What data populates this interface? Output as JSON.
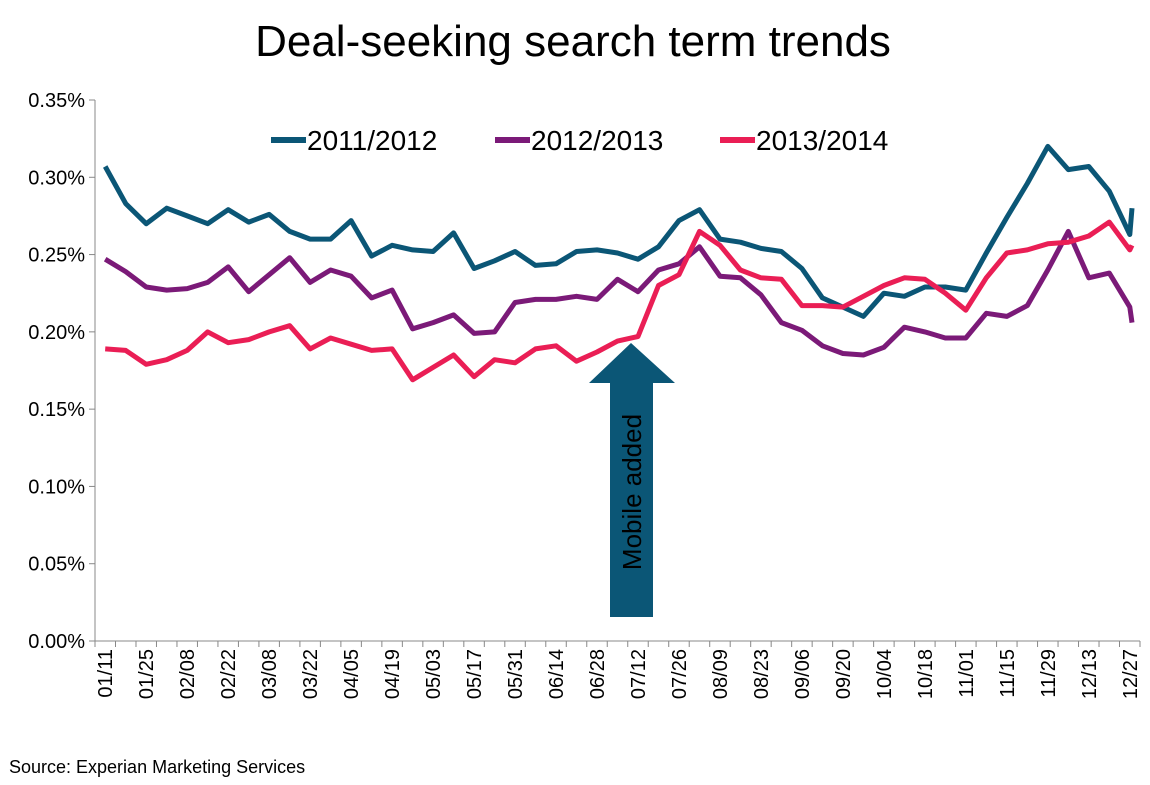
{
  "chart_data": {
    "type": "line",
    "title": "Deal-seeking search term trends",
    "xlabel": "",
    "ylabel": "",
    "ylim": [
      0,
      0.35
    ],
    "yticks": [
      "0.00%",
      "0.05%",
      "0.10%",
      "0.15%",
      "0.20%",
      "0.25%",
      "0.30%",
      "0.35%"
    ],
    "ytick_values": [
      0,
      0.05,
      0.1,
      0.15,
      0.2,
      0.25,
      0.3,
      0.35
    ],
    "x_count": 51,
    "xtick_labels": [
      "01/11",
      "01/25",
      "02/08",
      "02/22",
      "03/08",
      "03/22",
      "04/05",
      "04/19",
      "05/03",
      "05/17",
      "05/31",
      "06/14",
      "06/28",
      "07/12",
      "07/26",
      "08/09",
      "08/23",
      "09/06",
      "09/20",
      "10/04",
      "10/18",
      "11/01",
      "11/15",
      "11/29",
      "12/13",
      "12/27"
    ],
    "grid": false,
    "legend_position": "top-center",
    "series": [
      {
        "name": "2011/2012",
        "color": "#0b5676",
        "values": [
          0.307,
          0.283,
          0.27,
          0.28,
          0.275,
          0.27,
          0.279,
          0.271,
          0.276,
          0.265,
          0.26,
          0.26,
          0.272,
          0.249,
          0.256,
          0.253,
          0.252,
          0.264,
          0.241,
          0.246,
          0.252,
          0.243,
          0.244,
          0.252,
          0.253,
          0.251,
          0.247,
          0.255,
          0.272,
          0.279,
          0.26,
          0.258,
          0.254,
          0.252,
          0.241,
          0.222,
          0.216,
          0.21,
          0.225,
          0.223,
          0.229,
          0.229,
          0.227,
          0.251,
          0.274,
          0.296,
          0.32,
          0.305,
          0.307,
          0.291,
          0.263
        ]
      },
      {
        "name": "2012/2013",
        "color": "#7b1a78",
        "values": [
          0.247,
          0.239,
          0.229,
          0.227,
          0.228,
          0.232,
          0.242,
          0.226,
          0.237,
          0.248,
          0.232,
          0.24,
          0.236,
          0.222,
          0.227,
          0.202,
          0.206,
          0.211,
          0.199,
          0.2,
          0.219,
          0.221,
          0.221,
          0.223,
          0.221,
          0.234,
          0.226,
          0.24,
          0.244,
          0.255,
          0.236,
          0.235,
          0.224,
          0.206,
          0.201,
          0.191,
          0.186,
          0.185,
          0.19,
          0.203,
          0.2,
          0.196,
          0.196,
          0.212,
          0.21,
          0.217,
          0.24,
          0.265,
          0.235,
          0.238,
          0.216
        ]
      },
      {
        "name": "2013/2014",
        "color": "#ea1e55",
        "values": [
          0.189,
          0.188,
          0.179,
          0.182,
          0.188,
          0.2,
          0.193,
          0.195,
          0.2,
          0.204,
          0.189,
          0.196,
          0.192,
          0.188,
          0.189,
          0.169,
          0.177,
          0.185,
          0.171,
          0.182,
          0.18,
          0.189,
          0.191,
          0.181,
          0.187,
          0.194,
          0.197,
          0.23,
          0.237,
          0.265,
          0.256,
          0.24,
          0.235,
          0.234,
          0.217,
          0.217,
          0.216,
          0.223,
          0.23,
          0.235,
          0.234,
          0.225,
          0.214,
          0.235,
          0.251,
          0.253,
          0.257,
          0.258,
          0.262,
          0.271,
          0.253
        ]
      }
    ],
    "extra_points": {
      "2011/2012": 0.28,
      "2012/2013": 0.206,
      "2013/2014": 0.256
    },
    "annotation": {
      "text": "Mobile added",
      "x_index": 26,
      "color": "#0b5676"
    },
    "source": "Source: Experian Marketing Services"
  }
}
